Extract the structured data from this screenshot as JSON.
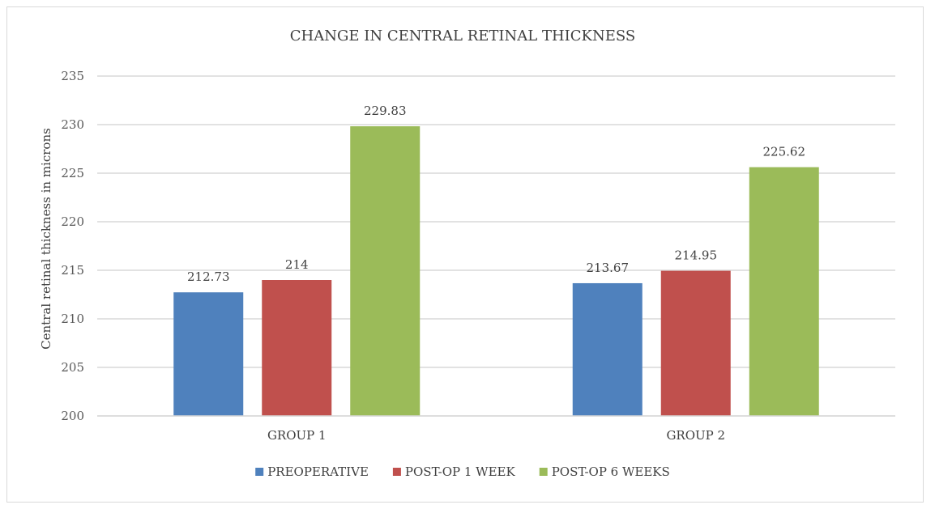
{
  "chart_data": {
    "type": "bar",
    "title": "CHANGE IN CENTRAL RETINAL THICKNESS",
    "xlabel": "",
    "ylabel": "Central retinal thickness in microns",
    "categories": [
      "GROUP 1",
      "GROUP 2"
    ],
    "ylim": [
      200,
      235
    ],
    "yticks": [
      200,
      205,
      210,
      215,
      220,
      225,
      230,
      235
    ],
    "grid": true,
    "legend_position": "bottom",
    "series": [
      {
        "name": "PREOPERATIVE",
        "color": "#4f81bd",
        "values": [
          212.73,
          213.67
        ],
        "labels": [
          "212.73",
          "213.67"
        ]
      },
      {
        "name": "POST-OP 1 WEEK",
        "color": "#c0504d",
        "values": [
          214,
          214.95
        ],
        "labels": [
          "214",
          "214.95"
        ]
      },
      {
        "name": "POST-OP 6 WEEKS",
        "color": "#9bbb59",
        "values": [
          229.83,
          225.62
        ],
        "labels": [
          "229.83",
          "225.62"
        ]
      }
    ]
  }
}
